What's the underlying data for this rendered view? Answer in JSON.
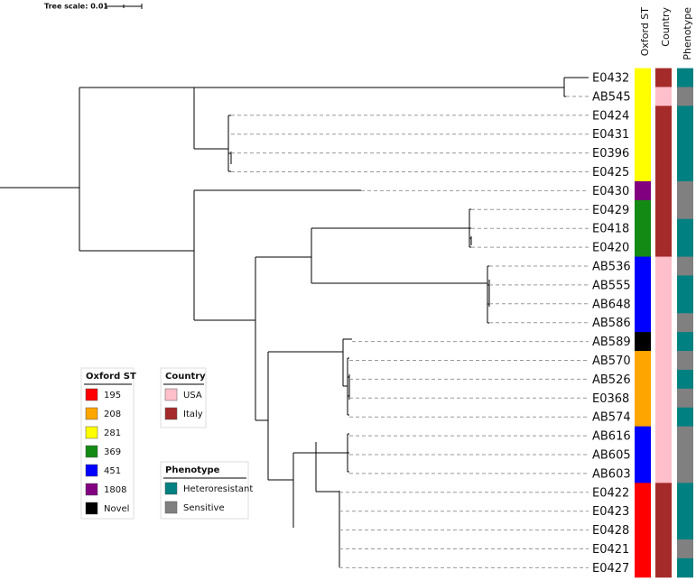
{
  "tree_scale": "Tree scale: 0.01",
  "headers": [
    "Oxford ST",
    "Country",
    "Phenotype"
  ],
  "legends": {
    "st": {
      "title": "Oxford ST",
      "items": [
        {
          "label": "195",
          "color": "#ff0000"
        },
        {
          "label": "208",
          "color": "#ffa500"
        },
        {
          "label": "281",
          "color": "#ffff00"
        },
        {
          "label": "369",
          "color": "#138a13"
        },
        {
          "label": "451",
          "color": "#0000ff"
        },
        {
          "label": "1808",
          "color": "#800080"
        },
        {
          "label": "Novel",
          "color": "#000000"
        }
      ]
    },
    "country": {
      "title": "Country",
      "items": [
        {
          "label": "USA",
          "color": "#ffc0cb"
        },
        {
          "label": "Italy",
          "color": "#a52a2a"
        }
      ]
    },
    "phenotype": {
      "title": "Phenotype",
      "items": [
        {
          "label": "Heteroresistant",
          "color": "#008080"
        },
        {
          "label": "Sensitive",
          "color": "#808080"
        }
      ]
    }
  },
  "leaves": [
    {
      "label": "E0432",
      "st": "281",
      "country": "Italy",
      "phenotype": "Heteroresistant"
    },
    {
      "label": "AB545",
      "st": "281",
      "country": "USA",
      "phenotype": "Sensitive"
    },
    {
      "label": "E0424",
      "st": "281",
      "country": "Italy",
      "phenotype": "Heteroresistant"
    },
    {
      "label": "E0431",
      "st": "281",
      "country": "Italy",
      "phenotype": "Heteroresistant"
    },
    {
      "label": "E0396",
      "st": "281",
      "country": "Italy",
      "phenotype": "Heteroresistant"
    },
    {
      "label": "E0425",
      "st": "281",
      "country": "Italy",
      "phenotype": "Heteroresistant"
    },
    {
      "label": "E0430",
      "st": "1808",
      "country": "Italy",
      "phenotype": "Sensitive"
    },
    {
      "label": "E0429",
      "st": "369",
      "country": "Italy",
      "phenotype": "Sensitive"
    },
    {
      "label": "E0418",
      "st": "369",
      "country": "Italy",
      "phenotype": "Heteroresistant"
    },
    {
      "label": "E0420",
      "st": "369",
      "country": "Italy",
      "phenotype": "Heteroresistant"
    },
    {
      "label": "AB536",
      "st": "451",
      "country": "USA",
      "phenotype": "Sensitive"
    },
    {
      "label": "AB555",
      "st": "451",
      "country": "USA",
      "phenotype": "Heteroresistant"
    },
    {
      "label": "AB648",
      "st": "451",
      "country": "USA",
      "phenotype": "Heteroresistant"
    },
    {
      "label": "AB586",
      "st": "451",
      "country": "USA",
      "phenotype": "Sensitive"
    },
    {
      "label": "AB589",
      "st": "Novel",
      "country": "USA",
      "phenotype": "Heteroresistant"
    },
    {
      "label": "AB570",
      "st": "208",
      "country": "USA",
      "phenotype": "Sensitive"
    },
    {
      "label": "AB526",
      "st": "208",
      "country": "USA",
      "phenotype": "Heteroresistant"
    },
    {
      "label": "E0368",
      "st": "208",
      "country": "USA",
      "phenotype": "Sensitive"
    },
    {
      "label": "AB574",
      "st": "208",
      "country": "USA",
      "phenotype": "Heteroresistant"
    },
    {
      "label": "AB616",
      "st": "451",
      "country": "USA",
      "phenotype": "Sensitive"
    },
    {
      "label": "AB605",
      "st": "451",
      "country": "USA",
      "phenotype": "Sensitive"
    },
    {
      "label": "AB603",
      "st": "451",
      "country": "USA",
      "phenotype": "Sensitive"
    },
    {
      "label": "E0422",
      "st": "195",
      "country": "Italy",
      "phenotype": "Heteroresistant"
    },
    {
      "label": "E0423",
      "st": "195",
      "country": "Italy",
      "phenotype": "Heteroresistant"
    },
    {
      "label": "E0428",
      "st": "195",
      "country": "Italy",
      "phenotype": "Heteroresistant"
    },
    {
      "label": "E0421",
      "st": "195",
      "country": "Italy",
      "phenotype": "Sensitive"
    },
    {
      "label": "E0427",
      "st": "195",
      "country": "Italy",
      "phenotype": "Heteroresistant"
    }
  ]
}
